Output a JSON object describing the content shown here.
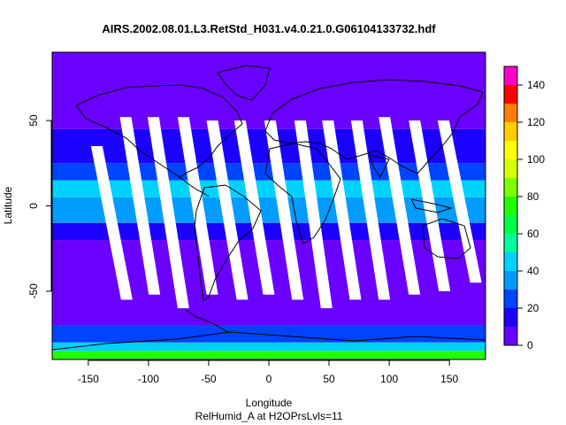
{
  "chart_data": {
    "type": "heatmap",
    "title": "AIRS.2002.08.01.L3.RetStd_H031.v4.0.21.0.G06104133732.hdf",
    "xlabel": "Longitude",
    "sublabel": "RelHumid_A at H2OPrsLvls=11",
    "ylabel": "Latitude",
    "xlim": [
      -180,
      180
    ],
    "ylim": [
      -90,
      90
    ],
    "x_ticks": [
      -150,
      -100,
      -50,
      0,
      50,
      100,
      150
    ],
    "y_ticks": [
      -50,
      0,
      50
    ],
    "colorbar": {
      "range": [
        0,
        150
      ],
      "ticks": [
        0,
        20,
        40,
        60,
        80,
        100,
        120,
        140
      ],
      "bins": [
        {
          "from": 0,
          "to": 10,
          "color": "#6a00ff"
        },
        {
          "from": 10,
          "to": 20,
          "color": "#1a00ff"
        },
        {
          "from": 20,
          "to": 30,
          "color": "#0044ff"
        },
        {
          "from": 30,
          "to": 40,
          "color": "#009cff"
        },
        {
          "from": 40,
          "to": 50,
          "color": "#00d2ff"
        },
        {
          "from": 50,
          "to": 60,
          "color": "#00ff9c"
        },
        {
          "from": 60,
          "to": 70,
          "color": "#00ff44"
        },
        {
          "from": 70,
          "to": 80,
          "color": "#22ff00"
        },
        {
          "from": 80,
          "to": 90,
          "color": "#7cff00"
        },
        {
          "from": 90,
          "to": 100,
          "color": "#d6ff00"
        },
        {
          "from": 100,
          "to": 110,
          "color": "#ffff00"
        },
        {
          "from": 110,
          "to": 120,
          "color": "#ffcc00"
        },
        {
          "from": 120,
          "to": 130,
          "color": "#ff7f00"
        },
        {
          "from": 130,
          "to": 140,
          "color": "#ff0000"
        },
        {
          "from": 140,
          "to": 150,
          "color": "#ff00cc"
        }
      ]
    },
    "latitude_bands": [
      {
        "lat_from": -90,
        "lat_to": -85,
        "value": 75
      },
      {
        "lat_from": -85,
        "lat_to": -80,
        "value": 45
      },
      {
        "lat_from": -80,
        "lat_to": -70,
        "value": 22
      },
      {
        "lat_from": -70,
        "lat_to": -20,
        "value": 5
      },
      {
        "lat_from": -20,
        "lat_to": -10,
        "value": 15
      },
      {
        "lat_from": -10,
        "lat_to": 5,
        "value": 35
      },
      {
        "lat_from": 5,
        "lat_to": 15,
        "value": 45
      },
      {
        "lat_from": 15,
        "lat_to": 25,
        "value": 25
      },
      {
        "lat_from": 25,
        "lat_to": 45,
        "value": 12
      },
      {
        "lat_from": 45,
        "lat_to": 90,
        "value": 5
      }
    ],
    "missing_swaths": [
      {
        "lon_top": -143,
        "lon_bottom": -118,
        "lat_top": 35,
        "lat_bottom": -55
      },
      {
        "lon_top": -119,
        "lon_bottom": -95,
        "lat_top": 52,
        "lat_bottom": -52
      },
      {
        "lon_top": -96,
        "lon_bottom": -71,
        "lat_top": 52,
        "lat_bottom": -60
      },
      {
        "lon_top": -71,
        "lon_bottom": -47,
        "lat_top": 52,
        "lat_bottom": -52
      },
      {
        "lon_top": -47,
        "lon_bottom": -22,
        "lat_top": 50,
        "lat_bottom": -55
      },
      {
        "lon_top": -24,
        "lon_bottom": 0,
        "lat_top": 50,
        "lat_bottom": -52
      },
      {
        "lon_top": 1,
        "lon_bottom": 24,
        "lat_top": 50,
        "lat_bottom": -55
      },
      {
        "lon_top": 26,
        "lon_bottom": 48,
        "lat_top": 50,
        "lat_bottom": -60
      },
      {
        "lon_top": 49,
        "lon_bottom": 72,
        "lat_top": 50,
        "lat_bottom": -55
      },
      {
        "lon_top": 73,
        "lon_bottom": 96,
        "lat_top": 50,
        "lat_bottom": -55
      },
      {
        "lon_top": 96,
        "lon_bottom": 121,
        "lat_top": 52,
        "lat_bottom": -52
      },
      {
        "lon_top": 121,
        "lon_bottom": 146,
        "lat_top": 50,
        "lat_bottom": -50
      },
      {
        "lon_top": 145,
        "lon_bottom": 172,
        "lat_top": 50,
        "lat_bottom": -45
      }
    ],
    "grid": false,
    "legend_placement": "right"
  }
}
